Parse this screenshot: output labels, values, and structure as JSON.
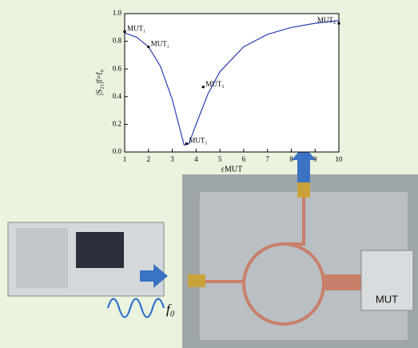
{
  "chart_data": {
    "type": "line",
    "x_label": "εMUT",
    "y_label": "|S₂₁|f=f₀",
    "xlim": [
      1,
      10
    ],
    "xticks": [
      1,
      2,
      3,
      4,
      5,
      6,
      7,
      8,
      9,
      10
    ],
    "ylim": [
      0,
      1
    ],
    "yticks": [
      {
        "value": 0,
        "label": "0.0"
      },
      0.2,
      0.4,
      0.6,
      0.8,
      {
        "value": 1,
        "label": "1.0"
      }
    ],
    "series": [
      {
        "color": "#2a3fb0",
        "x": [
          1,
          1.5,
          2,
          2.5,
          3,
          3.3,
          3.5,
          3.7,
          4,
          4.5,
          5,
          6,
          7,
          8,
          9,
          10
        ],
        "values": [
          0.86,
          0.83,
          0.76,
          0.62,
          0.38,
          0.18,
          0.05,
          0.06,
          0.2,
          0.42,
          0.58,
          0.76,
          0.85,
          0.9,
          0.93,
          0.95
        ]
      }
    ],
    "points": {
      "color": "#000000",
      "x": [
        1,
        2,
        4.3,
        10,
        3.6
      ],
      "values": [
        0.87,
        0.76,
        0.47,
        0.93,
        0.06
      ],
      "labels": [
        "MUT₁",
        "MUT₂",
        "MUT₃",
        "MUT₄",
        "MUT₅"
      ]
    }
  },
  "labels": {
    "signal": "f₀",
    "sample": "MUT"
  }
}
